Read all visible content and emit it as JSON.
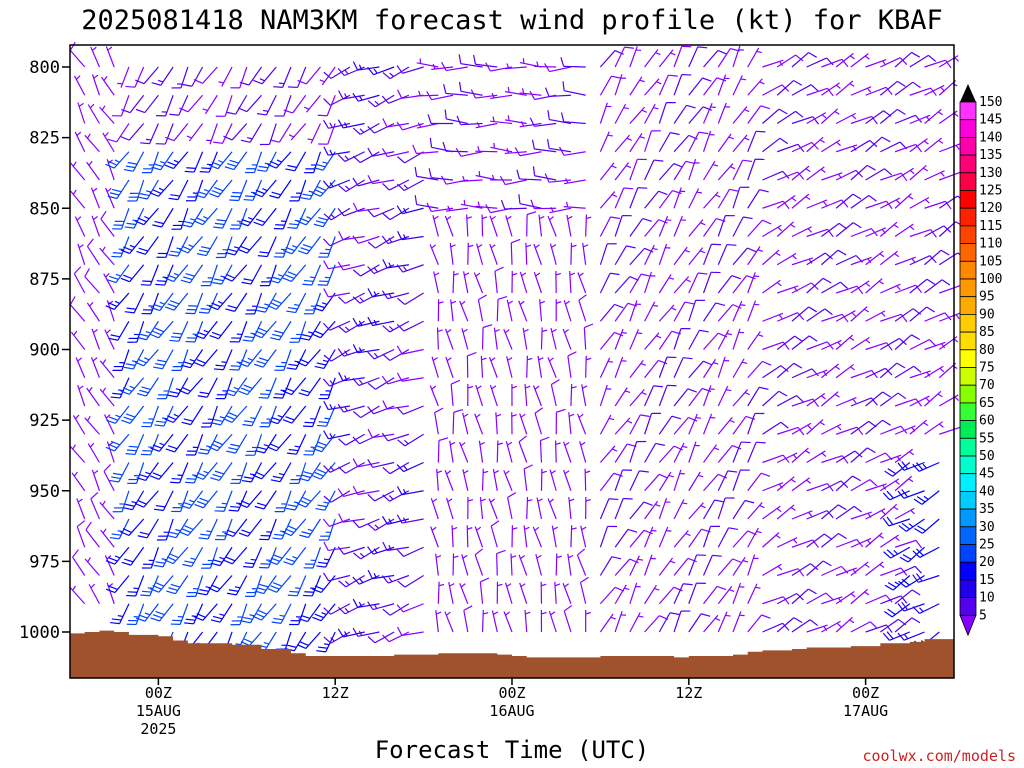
{
  "chart_data": {
    "type": "wind-barb time-height profile",
    "title": "2025081418 NAM3KM forecast wind profile (kt) for KBAF",
    "xlabel": "Forecast Time (UTC)",
    "ylabel": "",
    "y_axis_inverted": true,
    "y_ticks": [
      800,
      825,
      850,
      875,
      900,
      925,
      950,
      975,
      1000
    ],
    "ylim": [
      1015,
      793
    ],
    "x_ticks": [
      {
        "hour": 6,
        "line1": "00Z",
        "line2": "15AUG",
        "line3": "2025"
      },
      {
        "hour": 18,
        "line1": "12Z",
        "line2": "",
        "line3": ""
      },
      {
        "hour": 30,
        "line1": "00Z",
        "line2": "16AUG",
        "line3": ""
      },
      {
        "hour": 42,
        "line1": "12Z",
        "line2": "",
        "line3": ""
      },
      {
        "hour": 54,
        "line1": "00Z",
        "line2": "17AUG",
        "line3": ""
      }
    ],
    "xlim": [
      0,
      60
    ],
    "colorbar": {
      "units": "kt",
      "labels": [
        150,
        145,
        140,
        135,
        130,
        125,
        120,
        115,
        110,
        105,
        100,
        95,
        90,
        85,
        80,
        75,
        70,
        65,
        60,
        55,
        50,
        45,
        40,
        35,
        30,
        25,
        20,
        15,
        10,
        5
      ],
      "colors": [
        "#ff33ff",
        "#ff00dd",
        "#ff00aa",
        "#ff0077",
        "#ff0044",
        "#ff0000",
        "#ff2200",
        "#ff4400",
        "#ff6600",
        "#ff8800",
        "#ff9900",
        "#ffaa00",
        "#ffcc00",
        "#ffdd00",
        "#ffff00",
        "#ccff00",
        "#88ff00",
        "#33ff33",
        "#00ee55",
        "#00ff99",
        "#00ffcc",
        "#00eeff",
        "#00ccff",
        "#0099ff",
        "#0066ff",
        "#0044ff",
        "#0000ff",
        "#2200ee",
        "#5500ee",
        "#8800ff"
      ],
      "arrow_top_color": "#000000",
      "arrow_bottom_color": "#8800ff"
    },
    "terrain_color": "#a0522d",
    "terrain_surface_pressure": [
      {
        "hour": 0,
        "p": 1000.5
      },
      {
        "hour": 1,
        "p": 1000
      },
      {
        "hour": 2,
        "p": 999.5
      },
      {
        "hour": 3,
        "p": 1000
      },
      {
        "hour": 4,
        "p": 1001
      },
      {
        "hour": 6,
        "p": 1001.5
      },
      {
        "hour": 7,
        "p": 1003
      },
      {
        "hour": 8,
        "p": 1004
      },
      {
        "hour": 11,
        "p": 1004.5
      },
      {
        "hour": 13,
        "p": 1006
      },
      {
        "hour": 15,
        "p": 1007.5
      },
      {
        "hour": 16,
        "p": 1008.5
      },
      {
        "hour": 22,
        "p": 1008
      },
      {
        "hour": 25,
        "p": 1007.5
      },
      {
        "hour": 29,
        "p": 1008
      },
      {
        "hour": 30,
        "p": 1008.5
      },
      {
        "hour": 31,
        "p": 1009
      },
      {
        "hour": 35,
        "p": 1009
      },
      {
        "hour": 36,
        "p": 1008.5
      },
      {
        "hour": 40,
        "p": 1008.5
      },
      {
        "hour": 41,
        "p": 1009
      },
      {
        "hour": 42,
        "p": 1008.5
      },
      {
        "hour": 45,
        "p": 1008
      },
      {
        "hour": 46,
        "p": 1007
      },
      {
        "hour": 47,
        "p": 1006.5
      },
      {
        "hour": 49,
        "p": 1006
      },
      {
        "hour": 50,
        "p": 1005.5
      },
      {
        "hour": 53,
        "p": 1005
      },
      {
        "hour": 55,
        "p": 1004
      },
      {
        "hour": 57,
        "p": 1003.5
      },
      {
        "hour": 58,
        "p": 1002.5
      },
      {
        "hour": 60,
        "p": 1002.5
      }
    ],
    "wind_levels_hpa": [
      800,
      810,
      820,
      830,
      840,
      850,
      860,
      870,
      880,
      890,
      900,
      910,
      920,
      930,
      940,
      950,
      960,
      970,
      980,
      990,
      1000,
      1010
    ],
    "wind_barbs_description": "Barbs every forecast hour (hours 1-59) at each level above ground; 5-15 kt purple, stronger 20-30 kt blue barbs at hours 4-18 between 830-990 hPa and hours 57-59 near 960-975 hPa.",
    "wind_regimes": [
      {
        "hours": [
          1,
          3
        ],
        "pressure": [
          795,
          1000
        ],
        "dir_from_deg": 330,
        "speed_kt": 5
      },
      {
        "hours": [
          4,
          18
        ],
        "pressure": [
          795,
          825
        ],
        "dir_from_deg": 210,
        "speed_kt": 10
      },
      {
        "hours": [
          4,
          18
        ],
        "pressure": [
          825,
          1000
        ],
        "dir_from_deg": 210,
        "speed_kt": 25
      },
      {
        "hours": [
          19,
          24
        ],
        "pressure": [
          795,
          1000
        ],
        "dir_from_deg": 250,
        "speed_kt": 12
      },
      {
        "hours": [
          25,
          35
        ],
        "pressure": [
          795,
          860
        ],
        "dir_from_deg": 270,
        "speed_kt": 8
      },
      {
        "hours": [
          25,
          35
        ],
        "pressure": [
          860,
          1010
        ],
        "dir_from_deg": 350,
        "speed_kt": 5
      },
      {
        "hours": [
          36,
          46
        ],
        "pressure": [
          795,
          1010
        ],
        "dir_from_deg": 30,
        "speed_kt": 8
      },
      {
        "hours": [
          47,
          56
        ],
        "pressure": [
          795,
          1010
        ],
        "dir_from_deg": 60,
        "speed_kt": 8
      },
      {
        "hours": [
          57,
          59
        ],
        "pressure": [
          795,
          940
        ],
        "dir_from_deg": 60,
        "speed_kt": 8
      },
      {
        "hours": [
          57,
          59
        ],
        "pressure": [
          940,
          1005
        ],
        "dir_from_deg": 240,
        "speed_kt": 20
      }
    ]
  },
  "credit": {
    "text": "coolwx.com/models",
    "color": "#cc2222"
  }
}
